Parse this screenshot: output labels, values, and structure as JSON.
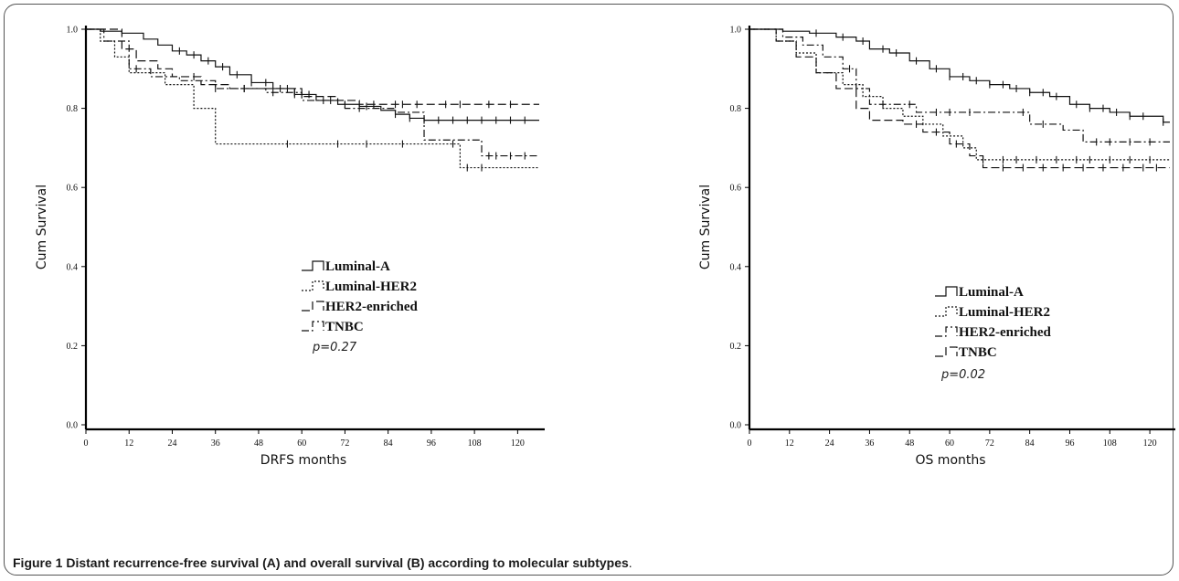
{
  "figure": {
    "caption_label": "Figure 1",
    "caption_title": "Distant recurrence-free survival (A) and overall survival (B) according to molecular subtypes",
    "caption_end": "."
  },
  "chart_data": [
    {
      "type": "line",
      "panel": "A",
      "xlabel": "DRFS months",
      "ylabel": "Cum Survival",
      "xlim": [
        0,
        126
      ],
      "ylim": [
        0,
        1.0
      ],
      "xticks": [
        0,
        12,
        24,
        36,
        48,
        60,
        72,
        84,
        96,
        108,
        120
      ],
      "yticks": [
        0.0,
        0.2,
        0.4,
        0.6,
        0.8,
        1.0
      ],
      "ytick_labels": [
        "0.0",
        "0.2",
        "0.4",
        "0.6",
        "0.8",
        "1.0"
      ],
      "legend_position": "center",
      "annotation": "p=0.27",
      "series": [
        {
          "name": "Luminal-A",
          "style": "solid",
          "x": [
            0,
            4,
            10,
            16,
            20,
            24,
            28,
            32,
            36,
            40,
            46,
            52,
            58,
            64,
            70,
            76,
            82,
            86,
            90,
            94,
            126
          ],
          "y": [
            1.0,
            0.995,
            0.99,
            0.975,
            0.96,
            0.945,
            0.935,
            0.92,
            0.905,
            0.885,
            0.865,
            0.85,
            0.835,
            0.82,
            0.81,
            0.805,
            0.795,
            0.785,
            0.775,
            0.77,
            0.77
          ],
          "censor_x": [
            26,
            30,
            34,
            38,
            42,
            46,
            50,
            54,
            58,
            62,
            66,
            72,
            78,
            86,
            90,
            94,
            98,
            102,
            106,
            110,
            114,
            118,
            122
          ]
        },
        {
          "name": "Luminal-HER2",
          "style": "dotted",
          "x": [
            0,
            4,
            8,
            12,
            22,
            30,
            36,
            80,
            98,
            104,
            126
          ],
          "y": [
            1.0,
            0.97,
            0.93,
            0.89,
            0.86,
            0.8,
            0.71,
            0.71,
            0.71,
            0.65,
            0.65
          ],
          "censor_x": [
            56,
            70,
            78,
            88,
            102,
            106,
            110
          ]
        },
        {
          "name": "HER2-enriched",
          "style": "dashed",
          "x": [
            0,
            10,
            14,
            20,
            24,
            32,
            40,
            60,
            70,
            76,
            84,
            126
          ],
          "y": [
            1.0,
            0.95,
            0.92,
            0.9,
            0.88,
            0.86,
            0.85,
            0.83,
            0.82,
            0.81,
            0.81,
            0.81
          ],
          "censor_x": [
            30,
            44,
            56,
            80,
            86,
            88,
            92,
            100,
            104,
            112,
            118
          ]
        },
        {
          "name": "TNBC",
          "style": "dash-dot",
          "x": [
            0,
            5,
            12,
            18,
            26,
            36,
            50,
            60,
            72,
            86,
            94,
            100,
            110,
            126
          ],
          "y": [
            1.0,
            0.97,
            0.9,
            0.88,
            0.87,
            0.85,
            0.84,
            0.82,
            0.8,
            0.79,
            0.72,
            0.72,
            0.68,
            0.68
          ],
          "censor_x": [
            14,
            36,
            44,
            52,
            58,
            68,
            76,
            112,
            114,
            118,
            122
          ]
        }
      ],
      "legend": [
        "Luminal-A",
        "Luminal-HER2",
        "HER2-enriched",
        "TNBC"
      ]
    },
    {
      "type": "line",
      "panel": "B",
      "xlabel": "OS months",
      "ylabel": "Cum Survival",
      "xlim": [
        0,
        126
      ],
      "ylim": [
        0,
        1.0
      ],
      "xticks": [
        0,
        12,
        24,
        36,
        48,
        60,
        72,
        84,
        96,
        108,
        120
      ],
      "yticks": [
        0.0,
        0.2,
        0.4,
        0.6,
        0.8,
        1.0
      ],
      "ytick_labels": [
        "0.0",
        "0.2",
        "0.4",
        "0.6",
        "0.8",
        "1.0"
      ],
      "legend_position": "center",
      "annotation": "p=0.02",
      "series": [
        {
          "name": "Luminal-A",
          "style": "solid",
          "x": [
            0,
            10,
            18,
            26,
            32,
            36,
            42,
            48,
            54,
            60,
            66,
            72,
            78,
            84,
            90,
            96,
            102,
            108,
            114,
            120,
            124,
            126
          ],
          "y": [
            1.0,
            0.995,
            0.99,
            0.98,
            0.97,
            0.95,
            0.94,
            0.92,
            0.9,
            0.88,
            0.87,
            0.86,
            0.85,
            0.84,
            0.83,
            0.81,
            0.8,
            0.79,
            0.78,
            0.78,
            0.765,
            0.765
          ],
          "censor_x": [
            20,
            28,
            34,
            40,
            44,
            50,
            56,
            60,
            64,
            68,
            72,
            76,
            80,
            84,
            88,
            92,
            98,
            102,
            106,
            110,
            114,
            118,
            124
          ]
        },
        {
          "name": "Luminal-HER2",
          "style": "dotted",
          "x": [
            0,
            8,
            14,
            20,
            28,
            34,
            40,
            46,
            52,
            58,
            64,
            68,
            126
          ],
          "y": [
            1.0,
            0.97,
            0.94,
            0.89,
            0.86,
            0.83,
            0.8,
            0.78,
            0.76,
            0.73,
            0.7,
            0.67,
            0.67
          ],
          "censor_x": [
            70,
            76,
            80,
            86,
            92,
            98,
            102,
            108,
            114,
            120
          ]
        },
        {
          "name": "HER2-enriched",
          "style": "dash-dot",
          "x": [
            0,
            10,
            16,
            22,
            28,
            32,
            36,
            50,
            64,
            84,
            94,
            100,
            126
          ],
          "y": [
            1.0,
            0.98,
            0.96,
            0.93,
            0.9,
            0.85,
            0.81,
            0.79,
            0.79,
            0.76,
            0.745,
            0.715,
            0.715
          ],
          "censor_x": [
            30,
            40,
            48,
            56,
            60,
            66,
            82,
            88,
            104,
            108,
            114,
            120
          ]
        },
        {
          "name": "TNBC",
          "style": "dashed",
          "x": [
            0,
            8,
            14,
            20,
            26,
            32,
            36,
            46,
            52,
            60,
            66,
            70,
            126
          ],
          "y": [
            1.0,
            0.97,
            0.93,
            0.89,
            0.85,
            0.8,
            0.77,
            0.76,
            0.74,
            0.71,
            0.68,
            0.65,
            0.65
          ],
          "censor_x": [
            50,
            56,
            62,
            76,
            82,
            88,
            94,
            100,
            106,
            112,
            118,
            122
          ]
        }
      ],
      "legend": [
        "Luminal-A",
        "Luminal-HER2",
        "HER2-enriched",
        "TNBC"
      ]
    }
  ]
}
